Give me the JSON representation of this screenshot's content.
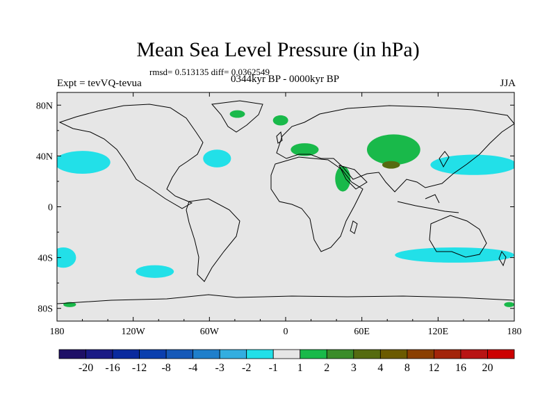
{
  "title": "Mean Sea Level Pressure (in hPa)",
  "stats": "rmsd= 0.513135 diff= 0.0362549",
  "period": "0344kyr BP - 0000kyr BP",
  "left_label": "Expt = tevVQ-tevua",
  "right_label": "JJA",
  "chart_data": {
    "type": "heatmap",
    "title": "Mean Sea Level Pressure (in hPa)",
    "x_axis": {
      "range": [
        -180,
        180
      ],
      "ticks": [
        -180,
        -120,
        -60,
        0,
        60,
        120,
        180
      ],
      "tick_labels": [
        "180",
        "120W",
        "60W",
        "0",
        "60E",
        "120E",
        "180"
      ]
    },
    "y_axis": {
      "range": [
        -90,
        90
      ],
      "ticks": [
        80,
        40,
        0,
        -40,
        -80
      ],
      "tick_labels": [
        "80N",
        "40N",
        "0",
        "40S",
        "80S"
      ]
    },
    "background_color": "#e6e6e6",
    "colorbar": {
      "labels": [
        "-20",
        "-16",
        "-12",
        "-8",
        "-4",
        "-3",
        "-2",
        "-1",
        "1",
        "2",
        "3",
        "4",
        "8",
        "12",
        "16",
        "20"
      ],
      "colors": [
        "#1e0f66",
        "#1a1a85",
        "#0a2a9e",
        "#0a3fae",
        "#1559b8",
        "#1f7fcb",
        "#33aee0",
        "#22e0e8",
        "#e6e6e6",
        "#19b94a",
        "#3a8c2a",
        "#556b10",
        "#6b5a00",
        "#8a3f00",
        "#a3250a",
        "#b81414",
        "#cc0000"
      ]
    },
    "anomaly_regions": [
      {
        "value_class": "-1 to -2",
        "lon": -160,
        "lat": 35,
        "rx": 22,
        "ry": 9
      },
      {
        "value_class": "-1 to -2",
        "lon": -54,
        "lat": 38,
        "rx": 11,
        "ry": 7
      },
      {
        "value_class": "-1 to -2",
        "lon": 148,
        "lat": 33,
        "rx": 34,
        "ry": 8
      },
      {
        "value_class": "-1 to -2",
        "lon": -175,
        "lat": -40,
        "rx": 10,
        "ry": 8
      },
      {
        "value_class": "-1 to -2",
        "lon": -103,
        "lat": -51,
        "rx": 15,
        "ry": 5
      },
      {
        "value_class": "-1 to -2",
        "lon": 133,
        "lat": -38,
        "rx": 47,
        "ry": 6
      },
      {
        "value_class": "1 to 2",
        "lon": -38,
        "lat": 73,
        "rx": 6,
        "ry": 3
      },
      {
        "value_class": "1 to 2",
        "lon": -4,
        "lat": 68,
        "rx": 6,
        "ry": 4
      },
      {
        "value_class": "1 to 2",
        "lon": 15,
        "lat": 45,
        "rx": 11,
        "ry": 5
      },
      {
        "value_class": "1 to 2",
        "lon": 45,
        "lat": 22,
        "rx": 6,
        "ry": 10
      },
      {
        "value_class": "1 to 2",
        "lon": 85,
        "lat": 45,
        "rx": 21,
        "ry": 12
      },
      {
        "value_class": "1 to 2",
        "lon": -170,
        "lat": -77,
        "rx": 5,
        "ry": 2
      },
      {
        "value_class": "1 to 2",
        "lon": 176,
        "lat": -77,
        "rx": 4,
        "ry": 2
      },
      {
        "value_class": "2 to 3",
        "lon": 83,
        "lat": 33,
        "rx": 7,
        "ry": 3
      }
    ]
  }
}
